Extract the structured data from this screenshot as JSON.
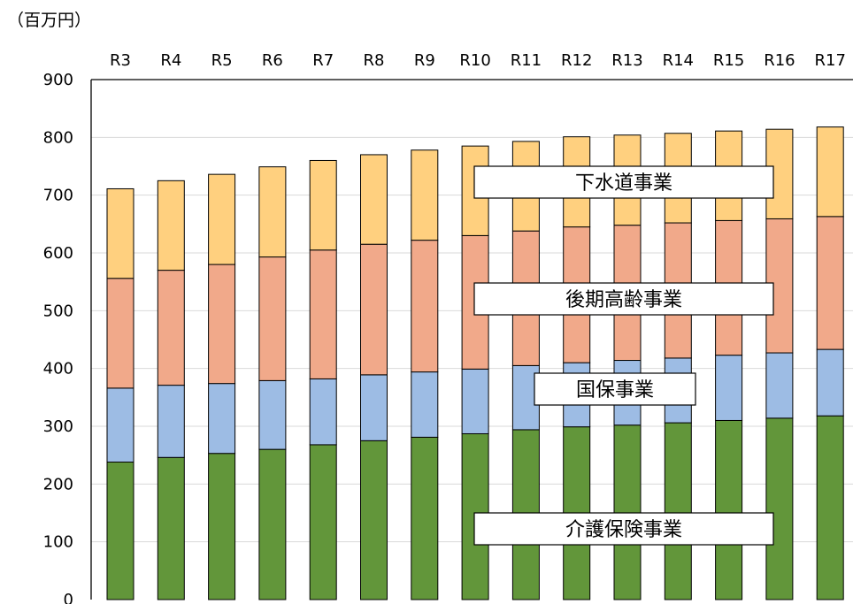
{
  "chart_data": {
    "type": "bar",
    "stacked": true,
    "unit_label": "（百万円）",
    "categories": [
      "R3",
      "R4",
      "R5",
      "R6",
      "R7",
      "R8",
      "R9",
      "R10",
      "R11",
      "R12",
      "R13",
      "R14",
      "R15",
      "R16",
      "R17"
    ],
    "series": [
      {
        "name": "介護保険事業",
        "color": "#62963a",
        "values": [
          238,
          246,
          253,
          260,
          268,
          275,
          281,
          287,
          294,
          299,
          302,
          306,
          310,
          314,
          318
        ]
      },
      {
        "name": "国保事業",
        "color": "#9dbce4",
        "values": [
          128,
          125,
          121,
          119,
          114,
          114,
          113,
          112,
          111,
          111,
          112,
          112,
          113,
          113,
          115
        ]
      },
      {
        "name": "後期高齢事業",
        "color": "#f1a98a",
        "values": [
          190,
          199,
          206,
          214,
          223,
          226,
          228,
          231,
          233,
          235,
          234,
          234,
          233,
          232,
          230
        ]
      },
      {
        "name": "下水道事業",
        "color": "#ffd07f",
        "values": [
          155,
          155,
          156,
          156,
          155,
          155,
          156,
          155,
          155,
          156,
          156,
          155,
          155,
          155,
          155
        ]
      }
    ],
    "ylim": [
      0,
      900
    ],
    "yticks": [
      0,
      100,
      200,
      300,
      400,
      500,
      600,
      700,
      800,
      900
    ],
    "grid": true,
    "legend": "inline-labels"
  }
}
